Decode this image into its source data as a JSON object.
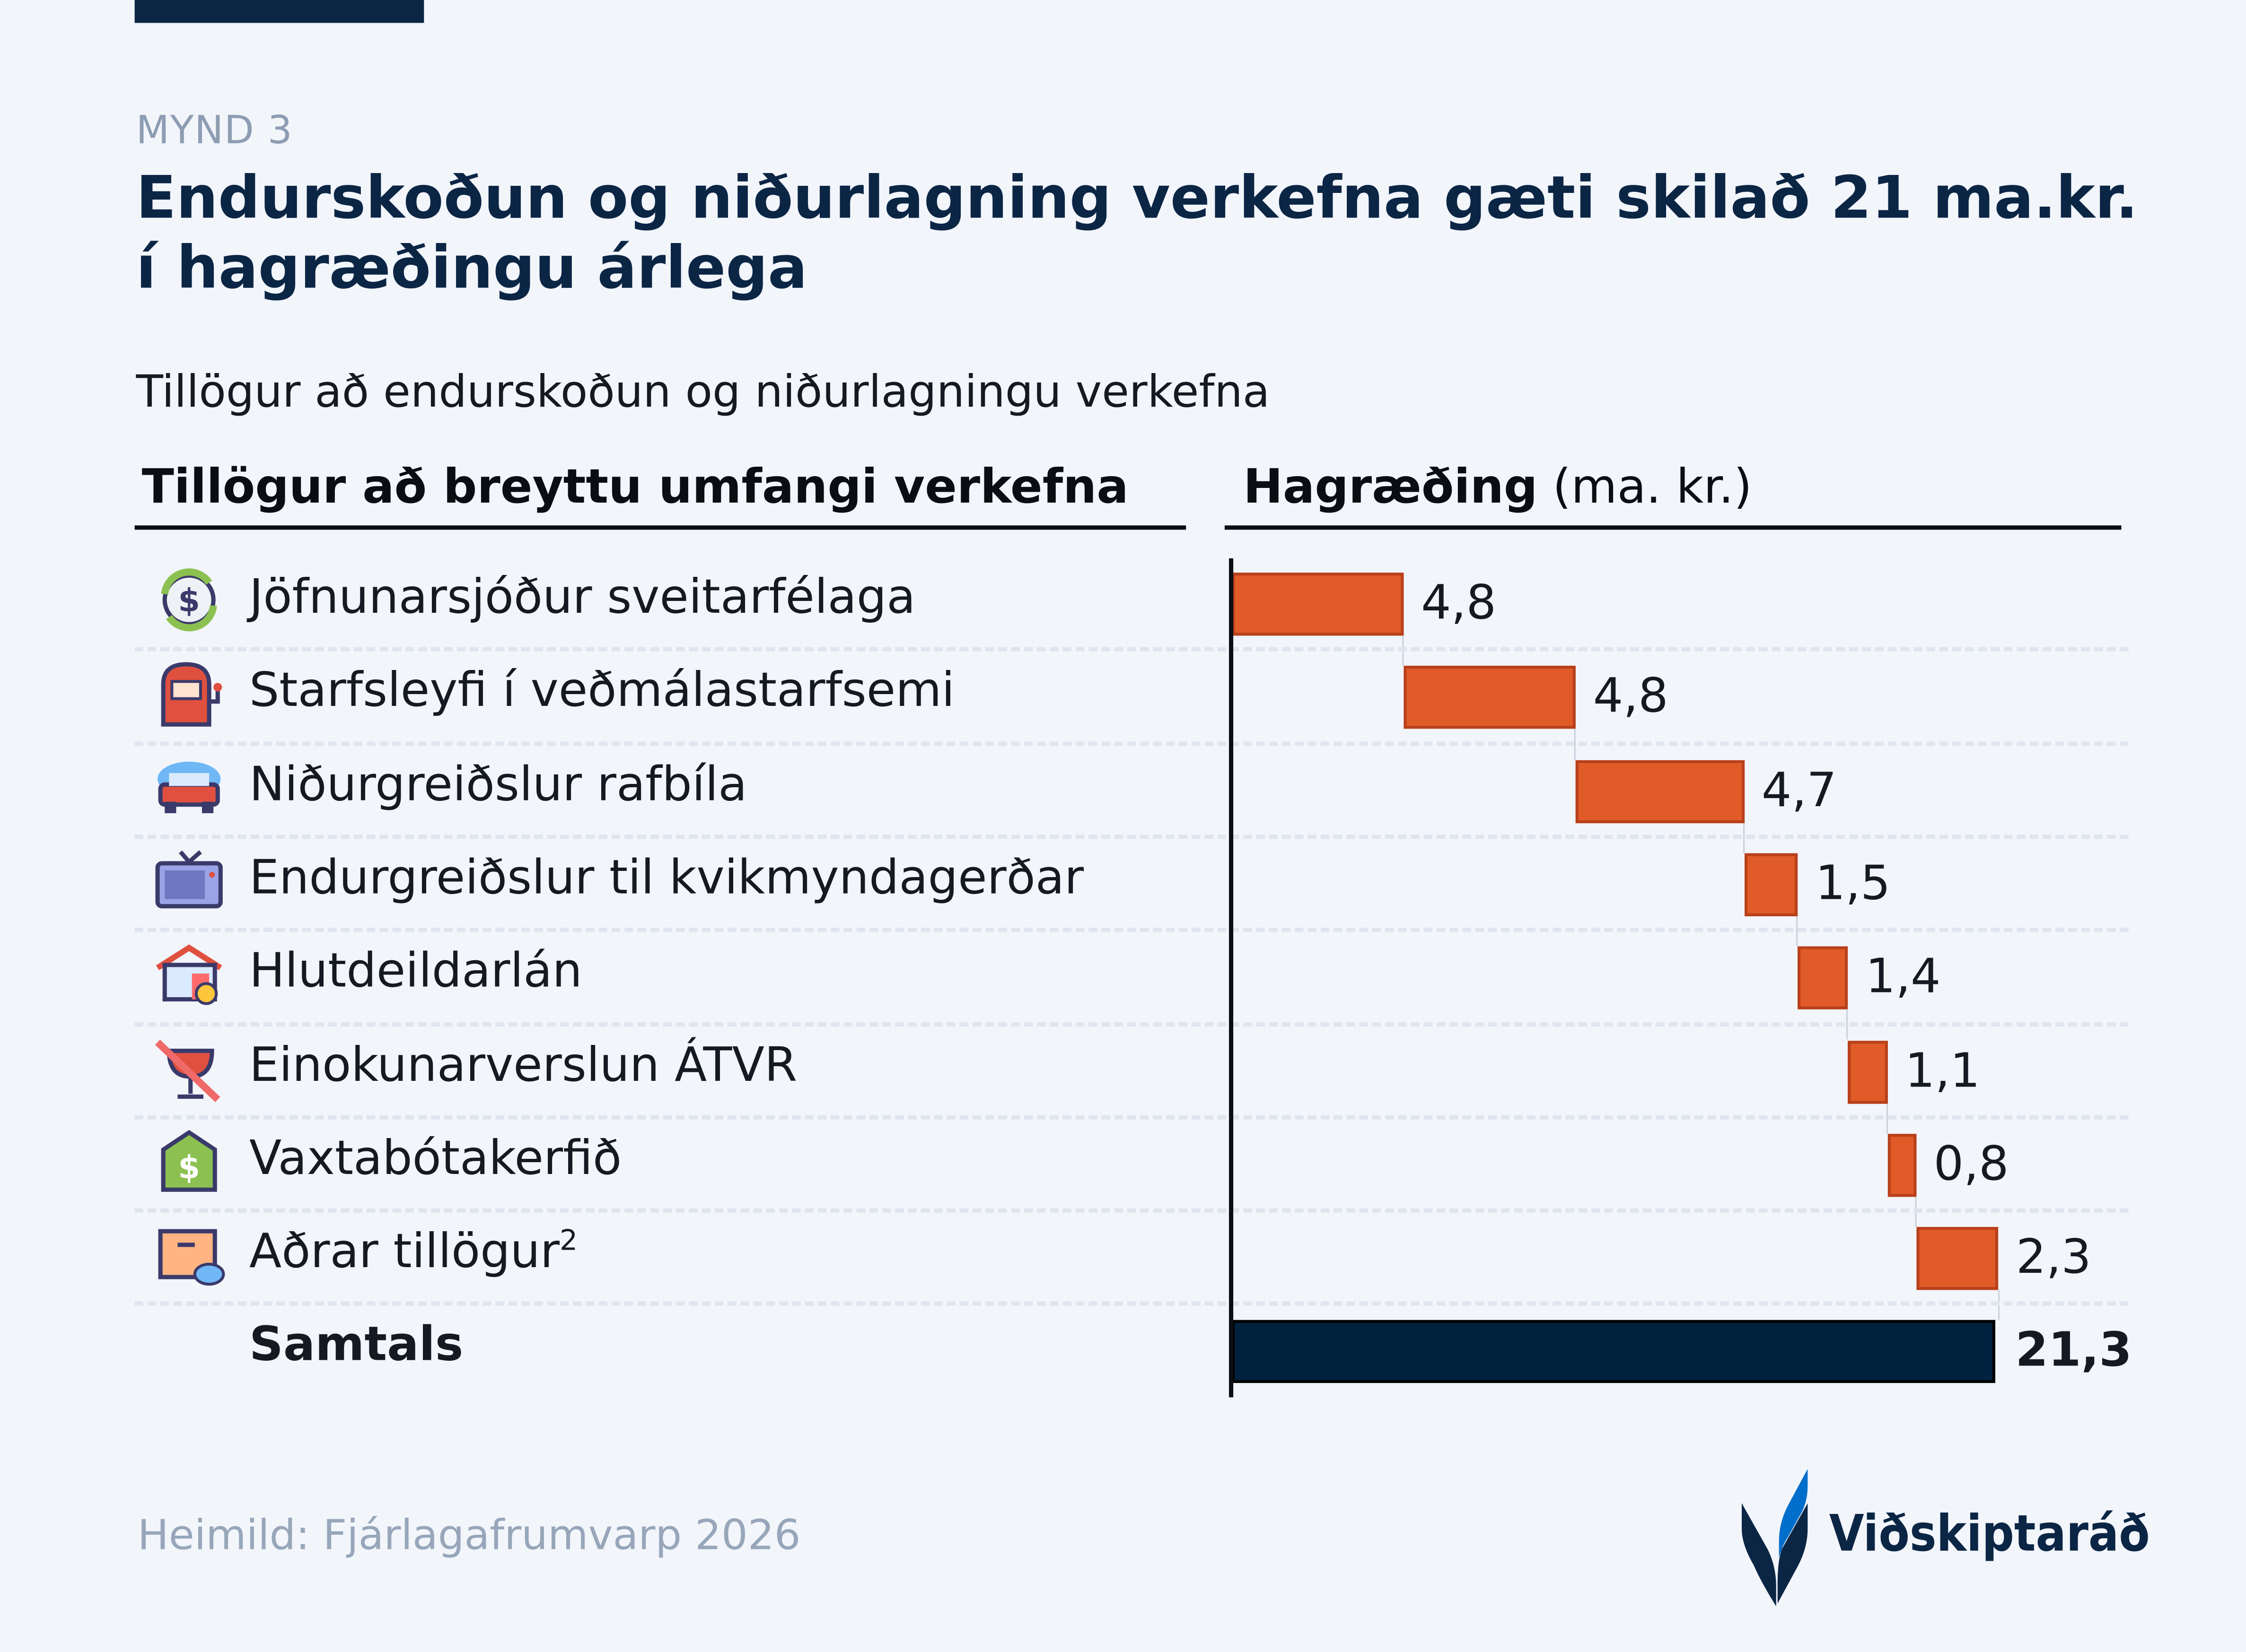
{
  "figure_label": "MYND 3",
  "title": "Endurskoðun og niðurlagning verkefna gæti skilað 21 ma.kr. í hagræðingu árlega",
  "subtitle": "Tillögur að endurskoðun og niðurlagningu verkefna",
  "source": "Heimild: Fjárlagafrumvarp 2026",
  "logo_text": "Viðskiptaráð",
  "colors": {
    "bar": "#e05b28",
    "bar_border": "#b8401b",
    "total": "#00223f",
    "navy": "#0b2545",
    "logo_blue": "#006ecb"
  },
  "chart_data": {
    "type": "waterfall",
    "left_header": "Tillögur að breyttu umfangi verkefna",
    "right_header_bold": "Hagræðing",
    "right_header_unit": "(ma. kr.)",
    "categories": [
      {
        "label": "Jöfnunarsjóður sveitarfélaga",
        "icon": "money-cycle-icon",
        "value": 4.8,
        "value_label": "4,8"
      },
      {
        "label": "Starfsleyfi í veðmálastarfsemi",
        "icon": "slot-machine-icon",
        "value": 4.8,
        "value_label": "4,8"
      },
      {
        "label": "Niðurgreiðslur rafbíla",
        "icon": "car-wash-icon",
        "value": 4.7,
        "value_label": "4,7"
      },
      {
        "label": "Endurgreiðslur til kvikmyndagerðar",
        "icon": "tv-icon",
        "value": 1.5,
        "value_label": "1,5"
      },
      {
        "label": "Hlutdeildarlán",
        "icon": "house-coin-icon",
        "value": 1.4,
        "value_label": "1,4"
      },
      {
        "label": "Einokunarverslun ÁTVR",
        "icon": "no-wine-icon",
        "value": 1.1,
        "value_label": "1,1"
      },
      {
        "label": "Vaxtabótakerfið",
        "icon": "dollar-tag-icon",
        "value": 0.8,
        "value_label": "0,8"
      },
      {
        "label": "Aðrar tillögur",
        "label_sup": "2",
        "icon": "box-chat-icon",
        "value": 2.3,
        "value_label": "2,3"
      }
    ],
    "total": {
      "label": "Samtals",
      "value": 21.3,
      "value_label": "21,3"
    },
    "xlim": [
      0,
      21.3
    ]
  }
}
